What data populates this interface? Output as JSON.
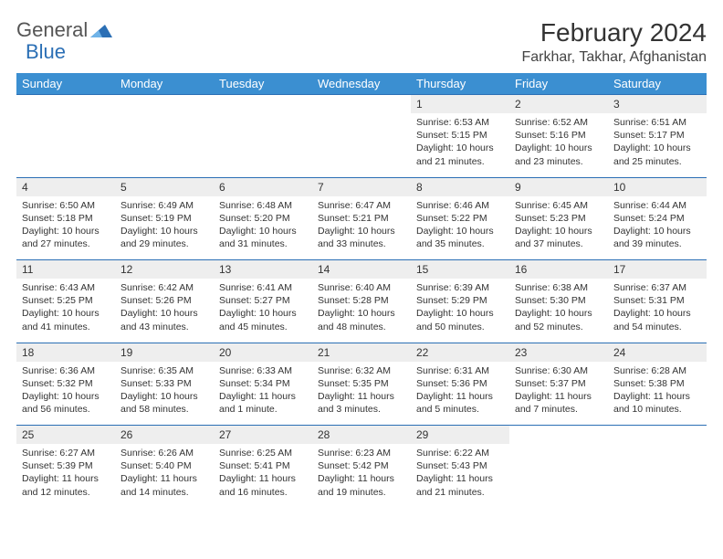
{
  "brand": {
    "part1": "General",
    "part2": "Blue"
  },
  "title": "February 2024",
  "location": "Farkhar, Takhar, Afghanistan",
  "colors": {
    "header_bg": "#3b8fd1",
    "header_text": "#ffffff",
    "daynum_bg": "#eeeeee",
    "border": "#2b6fb5",
    "logo_blue": "#2b6fb5"
  },
  "days": [
    "Sunday",
    "Monday",
    "Tuesday",
    "Wednesday",
    "Thursday",
    "Friday",
    "Saturday"
  ],
  "weeks": [
    [
      null,
      null,
      null,
      null,
      {
        "n": "1",
        "sr": "6:53 AM",
        "ss": "5:15 PM",
        "d": "10 hours and 21 minutes."
      },
      {
        "n": "2",
        "sr": "6:52 AM",
        "ss": "5:16 PM",
        "d": "10 hours and 23 minutes."
      },
      {
        "n": "3",
        "sr": "6:51 AM",
        "ss": "5:17 PM",
        "d": "10 hours and 25 minutes."
      }
    ],
    [
      {
        "n": "4",
        "sr": "6:50 AM",
        "ss": "5:18 PM",
        "d": "10 hours and 27 minutes."
      },
      {
        "n": "5",
        "sr": "6:49 AM",
        "ss": "5:19 PM",
        "d": "10 hours and 29 minutes."
      },
      {
        "n": "6",
        "sr": "6:48 AM",
        "ss": "5:20 PM",
        "d": "10 hours and 31 minutes."
      },
      {
        "n": "7",
        "sr": "6:47 AM",
        "ss": "5:21 PM",
        "d": "10 hours and 33 minutes."
      },
      {
        "n": "8",
        "sr": "6:46 AM",
        "ss": "5:22 PM",
        "d": "10 hours and 35 minutes."
      },
      {
        "n": "9",
        "sr": "6:45 AM",
        "ss": "5:23 PM",
        "d": "10 hours and 37 minutes."
      },
      {
        "n": "10",
        "sr": "6:44 AM",
        "ss": "5:24 PM",
        "d": "10 hours and 39 minutes."
      }
    ],
    [
      {
        "n": "11",
        "sr": "6:43 AM",
        "ss": "5:25 PM",
        "d": "10 hours and 41 minutes."
      },
      {
        "n": "12",
        "sr": "6:42 AM",
        "ss": "5:26 PM",
        "d": "10 hours and 43 minutes."
      },
      {
        "n": "13",
        "sr": "6:41 AM",
        "ss": "5:27 PM",
        "d": "10 hours and 45 minutes."
      },
      {
        "n": "14",
        "sr": "6:40 AM",
        "ss": "5:28 PM",
        "d": "10 hours and 48 minutes."
      },
      {
        "n": "15",
        "sr": "6:39 AM",
        "ss": "5:29 PM",
        "d": "10 hours and 50 minutes."
      },
      {
        "n": "16",
        "sr": "6:38 AM",
        "ss": "5:30 PM",
        "d": "10 hours and 52 minutes."
      },
      {
        "n": "17",
        "sr": "6:37 AM",
        "ss": "5:31 PM",
        "d": "10 hours and 54 minutes."
      }
    ],
    [
      {
        "n": "18",
        "sr": "6:36 AM",
        "ss": "5:32 PM",
        "d": "10 hours and 56 minutes."
      },
      {
        "n": "19",
        "sr": "6:35 AM",
        "ss": "5:33 PM",
        "d": "10 hours and 58 minutes."
      },
      {
        "n": "20",
        "sr": "6:33 AM",
        "ss": "5:34 PM",
        "d": "11 hours and 1 minute."
      },
      {
        "n": "21",
        "sr": "6:32 AM",
        "ss": "5:35 PM",
        "d": "11 hours and 3 minutes."
      },
      {
        "n": "22",
        "sr": "6:31 AM",
        "ss": "5:36 PM",
        "d": "11 hours and 5 minutes."
      },
      {
        "n": "23",
        "sr": "6:30 AM",
        "ss": "5:37 PM",
        "d": "11 hours and 7 minutes."
      },
      {
        "n": "24",
        "sr": "6:28 AM",
        "ss": "5:38 PM",
        "d": "11 hours and 10 minutes."
      }
    ],
    [
      {
        "n": "25",
        "sr": "6:27 AM",
        "ss": "5:39 PM",
        "d": "11 hours and 12 minutes."
      },
      {
        "n": "26",
        "sr": "6:26 AM",
        "ss": "5:40 PM",
        "d": "11 hours and 14 minutes."
      },
      {
        "n": "27",
        "sr": "6:25 AM",
        "ss": "5:41 PM",
        "d": "11 hours and 16 minutes."
      },
      {
        "n": "28",
        "sr": "6:23 AM",
        "ss": "5:42 PM",
        "d": "11 hours and 19 minutes."
      },
      {
        "n": "29",
        "sr": "6:22 AM",
        "ss": "5:43 PM",
        "d": "11 hours and 21 minutes."
      },
      null,
      null
    ]
  ],
  "labels": {
    "sunrise": "Sunrise: ",
    "sunset": "Sunset: ",
    "daylight": "Daylight: "
  }
}
